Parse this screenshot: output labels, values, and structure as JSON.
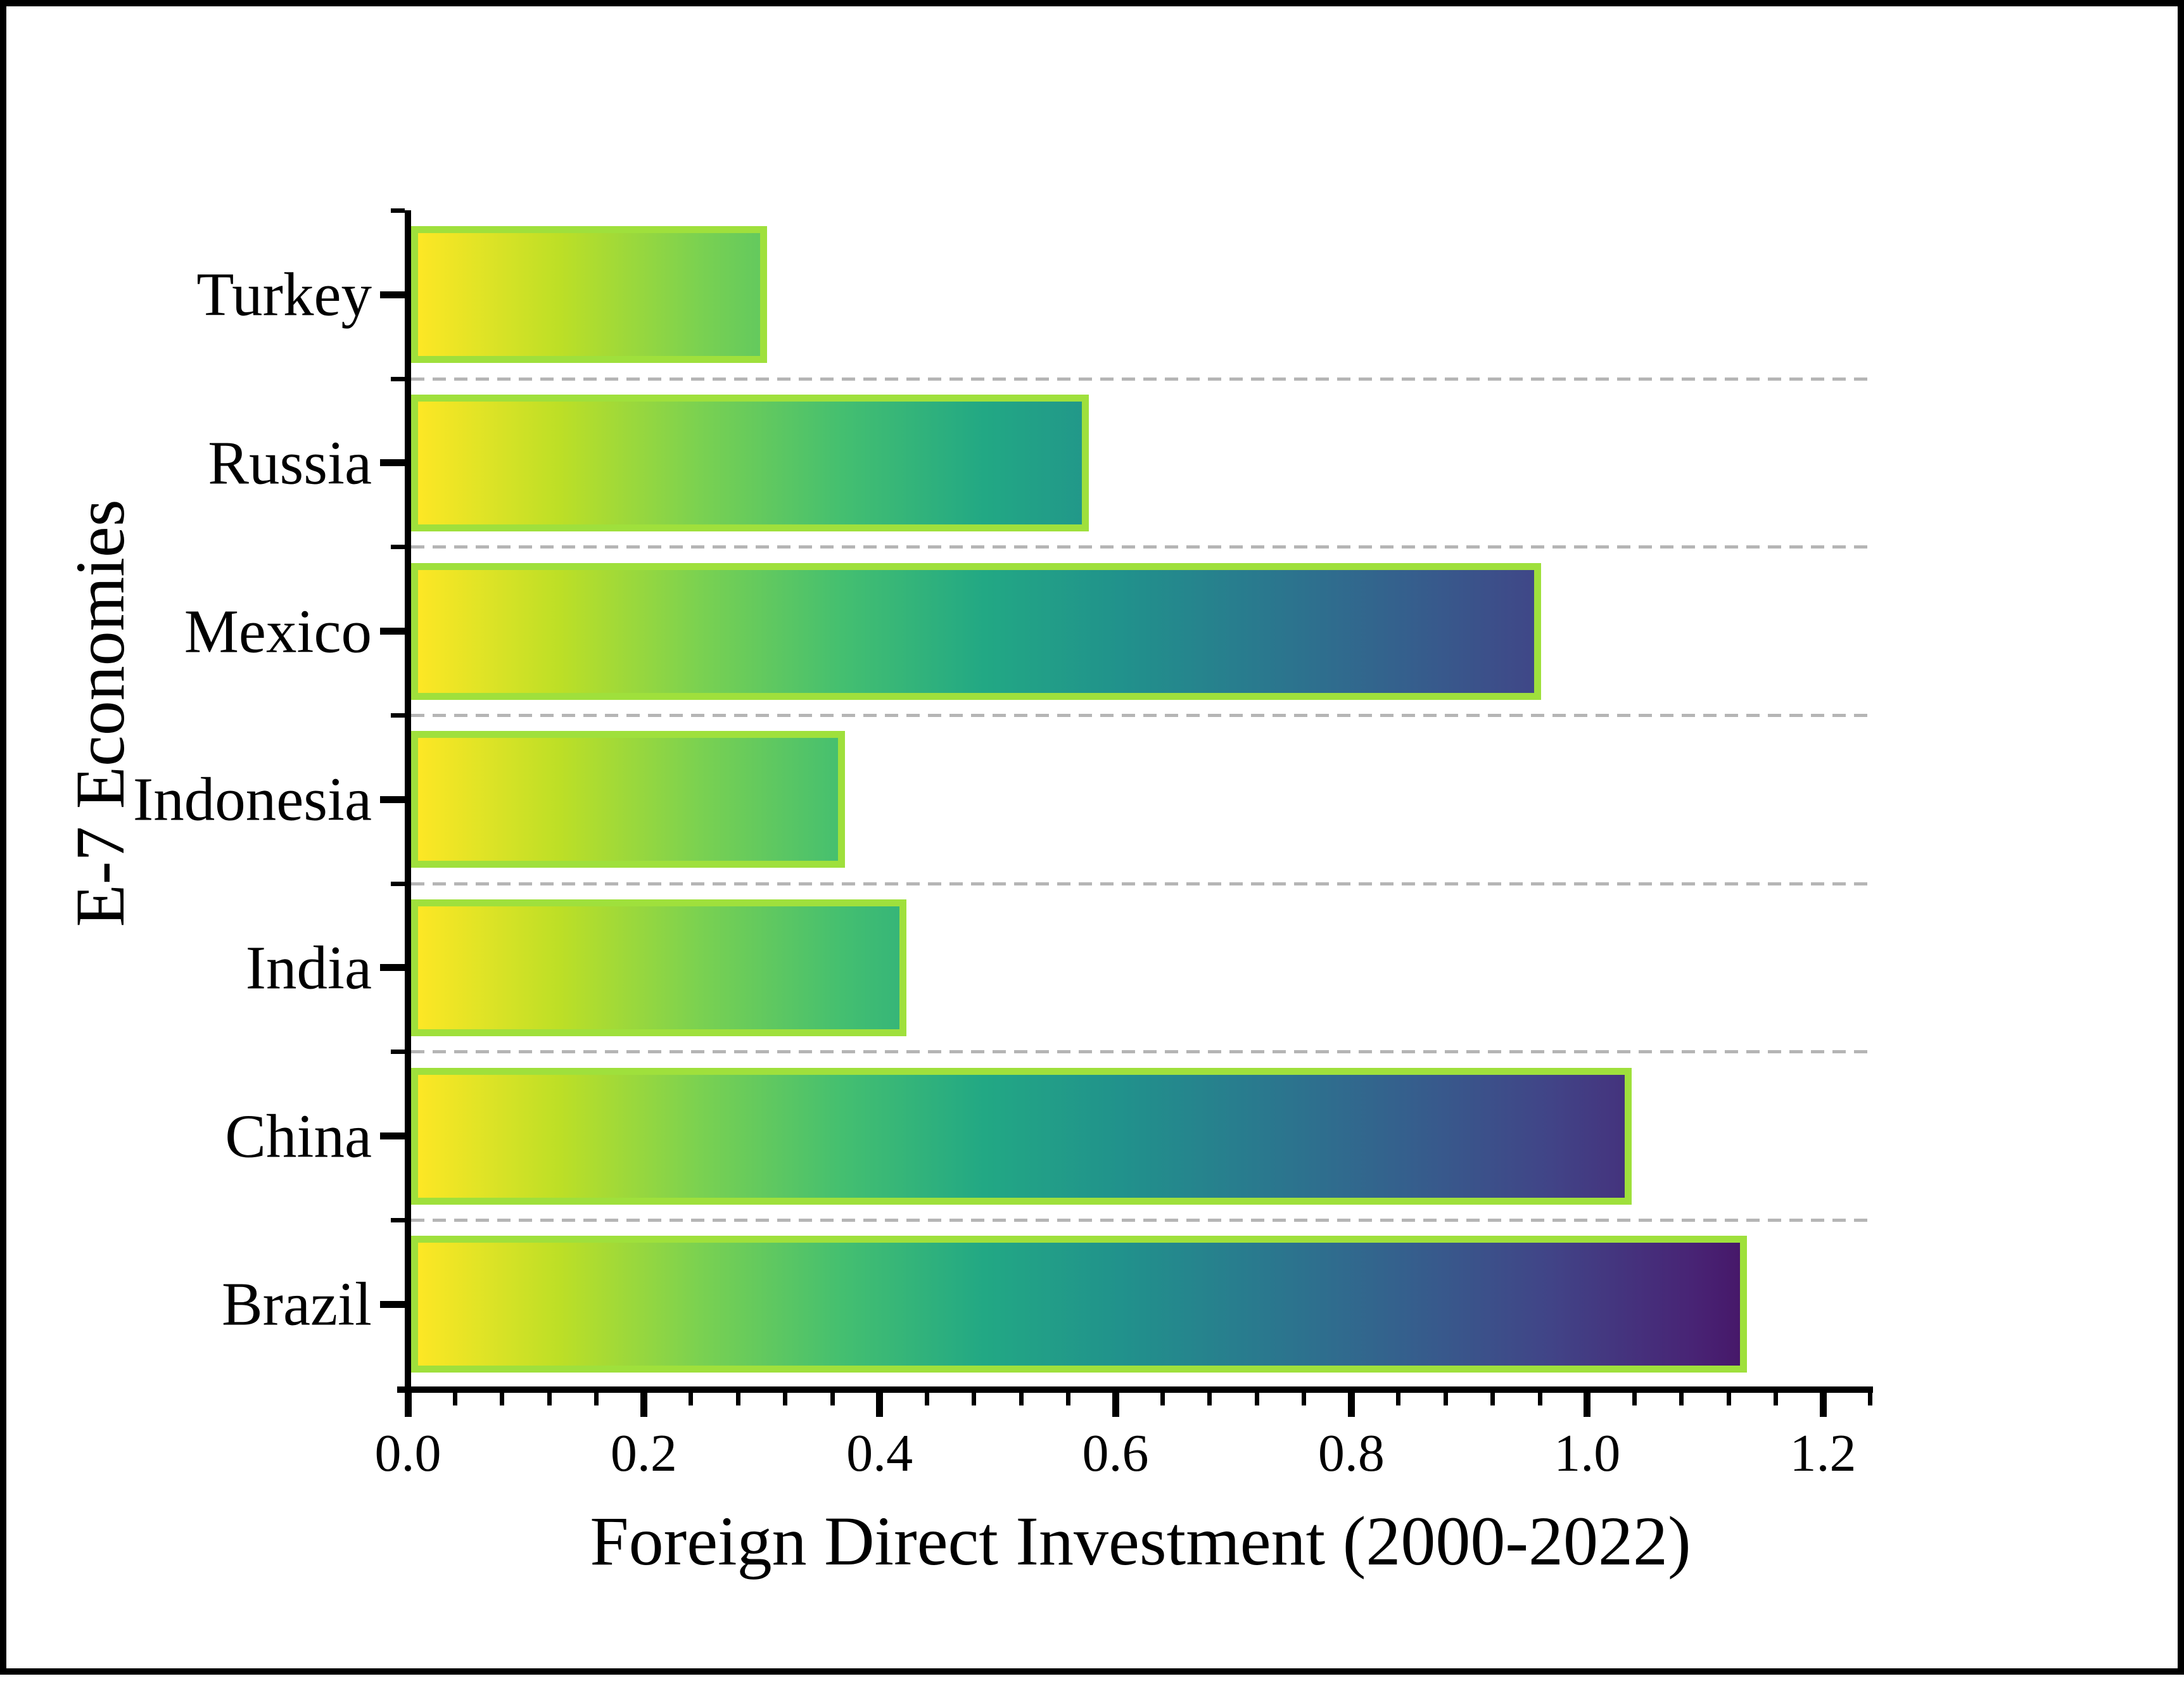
{
  "figure": {
    "background": "#ffffff",
    "border_color": "#000000"
  },
  "chart_data": {
    "type": "bar",
    "orientation": "horizontal",
    "title": "",
    "xlabel": "Foreign Direct Investment (2000-2022)",
    "ylabel": "E-7 Economies",
    "categories": [
      "Turkey",
      "Russia",
      "Mexico",
      "Indonesia",
      "India",
      "China",
      "Brazil"
    ],
    "values": [
      0.302,
      0.575,
      0.958,
      0.368,
      0.42,
      1.035,
      1.133
    ],
    "xlim": [
      0,
      1.24
    ],
    "x_tick_labels": [
      "0.0",
      "0.2",
      "0.4",
      "0.6",
      "0.8",
      "1.0",
      "1.2"
    ],
    "x_tick_values": [
      0,
      0.2,
      0.4,
      0.6,
      0.8,
      1.0,
      1.2
    ],
    "x_minor_tick_step": 0.04,
    "grid": {
      "style": "dashed",
      "placement": "horizontal-between-categories",
      "visible": true
    },
    "legend": {
      "visible": false
    },
    "colors": {
      "bar_gradient_stops": [
        "#fde725",
        "#bddf26",
        "#7ad151",
        "#44bf70",
        "#22a884",
        "#21918c",
        "#2a788e",
        "#355f8d",
        "#414487",
        "#482475",
        "#440154"
      ],
      "bar_gradient_domain": [
        0,
        1.2
      ],
      "bar_border": "#9FE03C",
      "gridline": "#B5B5B5",
      "axis": "#000000",
      "text": "#000000"
    }
  }
}
